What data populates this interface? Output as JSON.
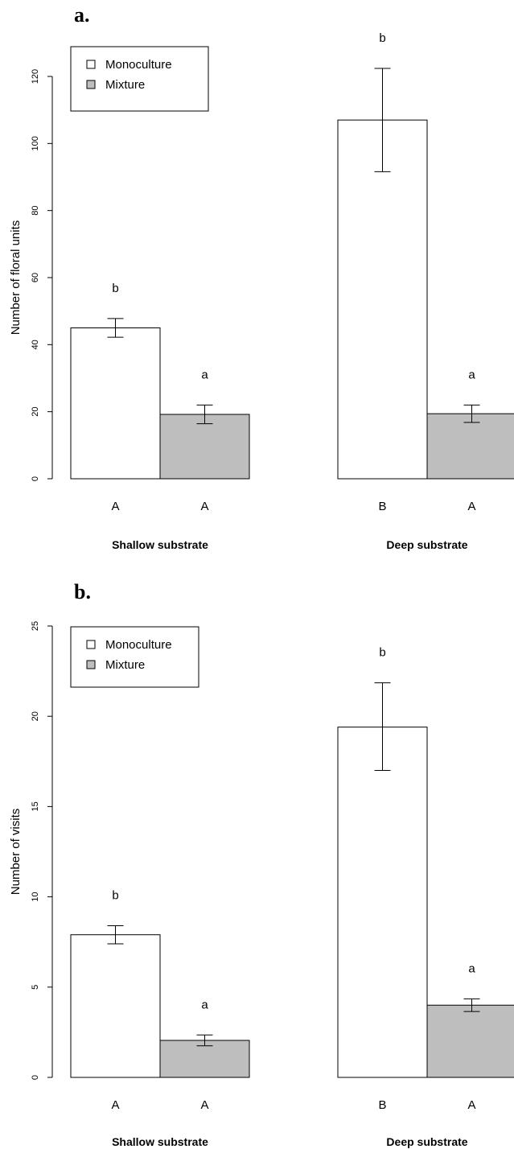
{
  "colors": {
    "monoculture": "#ffffff",
    "mixture": "#bebebe",
    "stroke": "#000000"
  },
  "legend": [
    {
      "name": "Monoculture",
      "color": "#ffffff"
    },
    {
      "name": "Mixture",
      "color": "#bebebe"
    }
  ],
  "chart_data": [
    {
      "type": "bar",
      "panel_label": "a.",
      "ylabel": "Number of floral units",
      "ylim": [
        0,
        120
      ],
      "yticks": [
        0,
        20,
        40,
        60,
        80,
        100,
        120
      ],
      "legend_position": "top-left",
      "groups": [
        {
          "name": "Shallow substrate",
          "bars": [
            {
              "series": "Monoculture",
              "value": 45.0,
              "err_low": 42.2,
              "err_high": 47.8,
              "sig_letter": "b",
              "category_letter": "A"
            },
            {
              "series": "Mixture",
              "value": 19.2,
              "err_low": 16.4,
              "err_high": 22.0,
              "sig_letter": "a",
              "category_letter": "A"
            }
          ]
        },
        {
          "name": "Deep substrate",
          "bars": [
            {
              "series": "Monoculture",
              "value": 107.0,
              "err_low": 91.6,
              "err_high": 122.4,
              "sig_letter": "b",
              "category_letter": "B"
            },
            {
              "series": "Mixture",
              "value": 19.4,
              "err_low": 16.8,
              "err_high": 22.0,
              "sig_letter": "a",
              "category_letter": "A"
            }
          ]
        }
      ]
    },
    {
      "type": "bar",
      "panel_label": "b.",
      "ylabel": "Number of visits",
      "ylim": [
        0,
        25
      ],
      "yticks": [
        0,
        5,
        10,
        15,
        20,
        25
      ],
      "legend_position": "top-left",
      "groups": [
        {
          "name": "Shallow substrate",
          "bars": [
            {
              "series": "Monoculture",
              "value": 7.9,
              "err_low": 7.4,
              "err_high": 8.4,
              "sig_letter": "b",
              "category_letter": "A"
            },
            {
              "series": "Mixture",
              "value": 2.05,
              "err_low": 1.75,
              "err_high": 2.35,
              "sig_letter": "a",
              "category_letter": "A"
            }
          ]
        },
        {
          "name": "Deep substrate",
          "bars": [
            {
              "series": "Monoculture",
              "value": 19.4,
              "err_low": 17.0,
              "err_high": 21.85,
              "sig_letter": "b",
              "category_letter": "B"
            },
            {
              "series": "Mixture",
              "value": 4.0,
              "err_low": 3.65,
              "err_high": 4.35,
              "sig_letter": "a",
              "category_letter": "A"
            }
          ]
        }
      ]
    }
  ]
}
